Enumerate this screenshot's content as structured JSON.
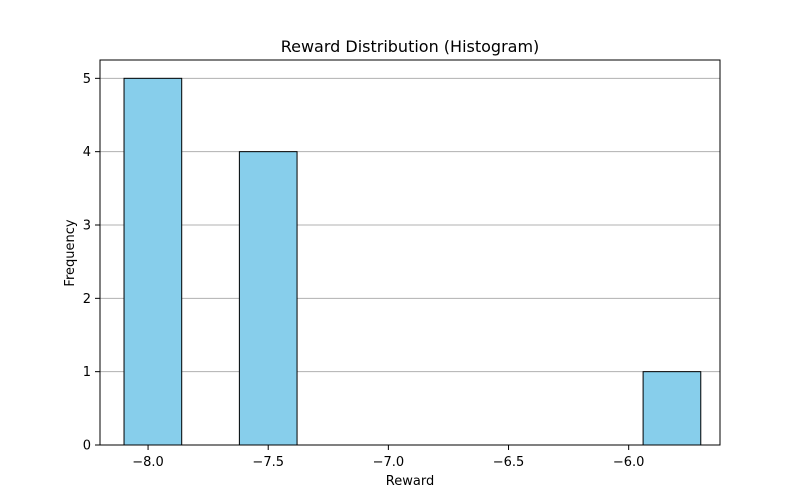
{
  "chart_data": {
    "type": "bar",
    "title": "Reward Distribution (Histogram)",
    "xlabel": "Reward",
    "ylabel": "Frequency",
    "xlim": [
      -8.2,
      -5.62
    ],
    "ylim": [
      0,
      5.25
    ],
    "x_ticks": [
      -8.0,
      -7.5,
      -7.0,
      -6.5,
      -6.0
    ],
    "x_tick_labels": [
      "−8.0",
      "−7.5",
      "−7.0",
      "−6.5",
      "−6.0"
    ],
    "y_ticks": [
      0,
      1,
      2,
      3,
      4,
      5
    ],
    "y_tick_labels": [
      "0",
      "1",
      "2",
      "3",
      "4",
      "5"
    ],
    "grid": "y",
    "bar_color": "#87ceeb",
    "edge_color": "#000000",
    "bins": [
      {
        "x0": -8.1,
        "x1": -7.86,
        "count": 5
      },
      {
        "x0": -7.86,
        "x1": -7.62,
        "count": 0
      },
      {
        "x0": -7.62,
        "x1": -7.38,
        "count": 4
      },
      {
        "x0": -7.38,
        "x1": -7.14,
        "count": 0
      },
      {
        "x0": -7.14,
        "x1": -6.9,
        "count": 0
      },
      {
        "x0": -6.9,
        "x1": -6.66,
        "count": 0
      },
      {
        "x0": -6.66,
        "x1": -6.42,
        "count": 0
      },
      {
        "x0": -6.42,
        "x1": -6.18,
        "count": 0
      },
      {
        "x0": -6.18,
        "x1": -5.94,
        "count": 0
      },
      {
        "x0": -5.94,
        "x1": -5.7,
        "count": 1
      }
    ]
  }
}
